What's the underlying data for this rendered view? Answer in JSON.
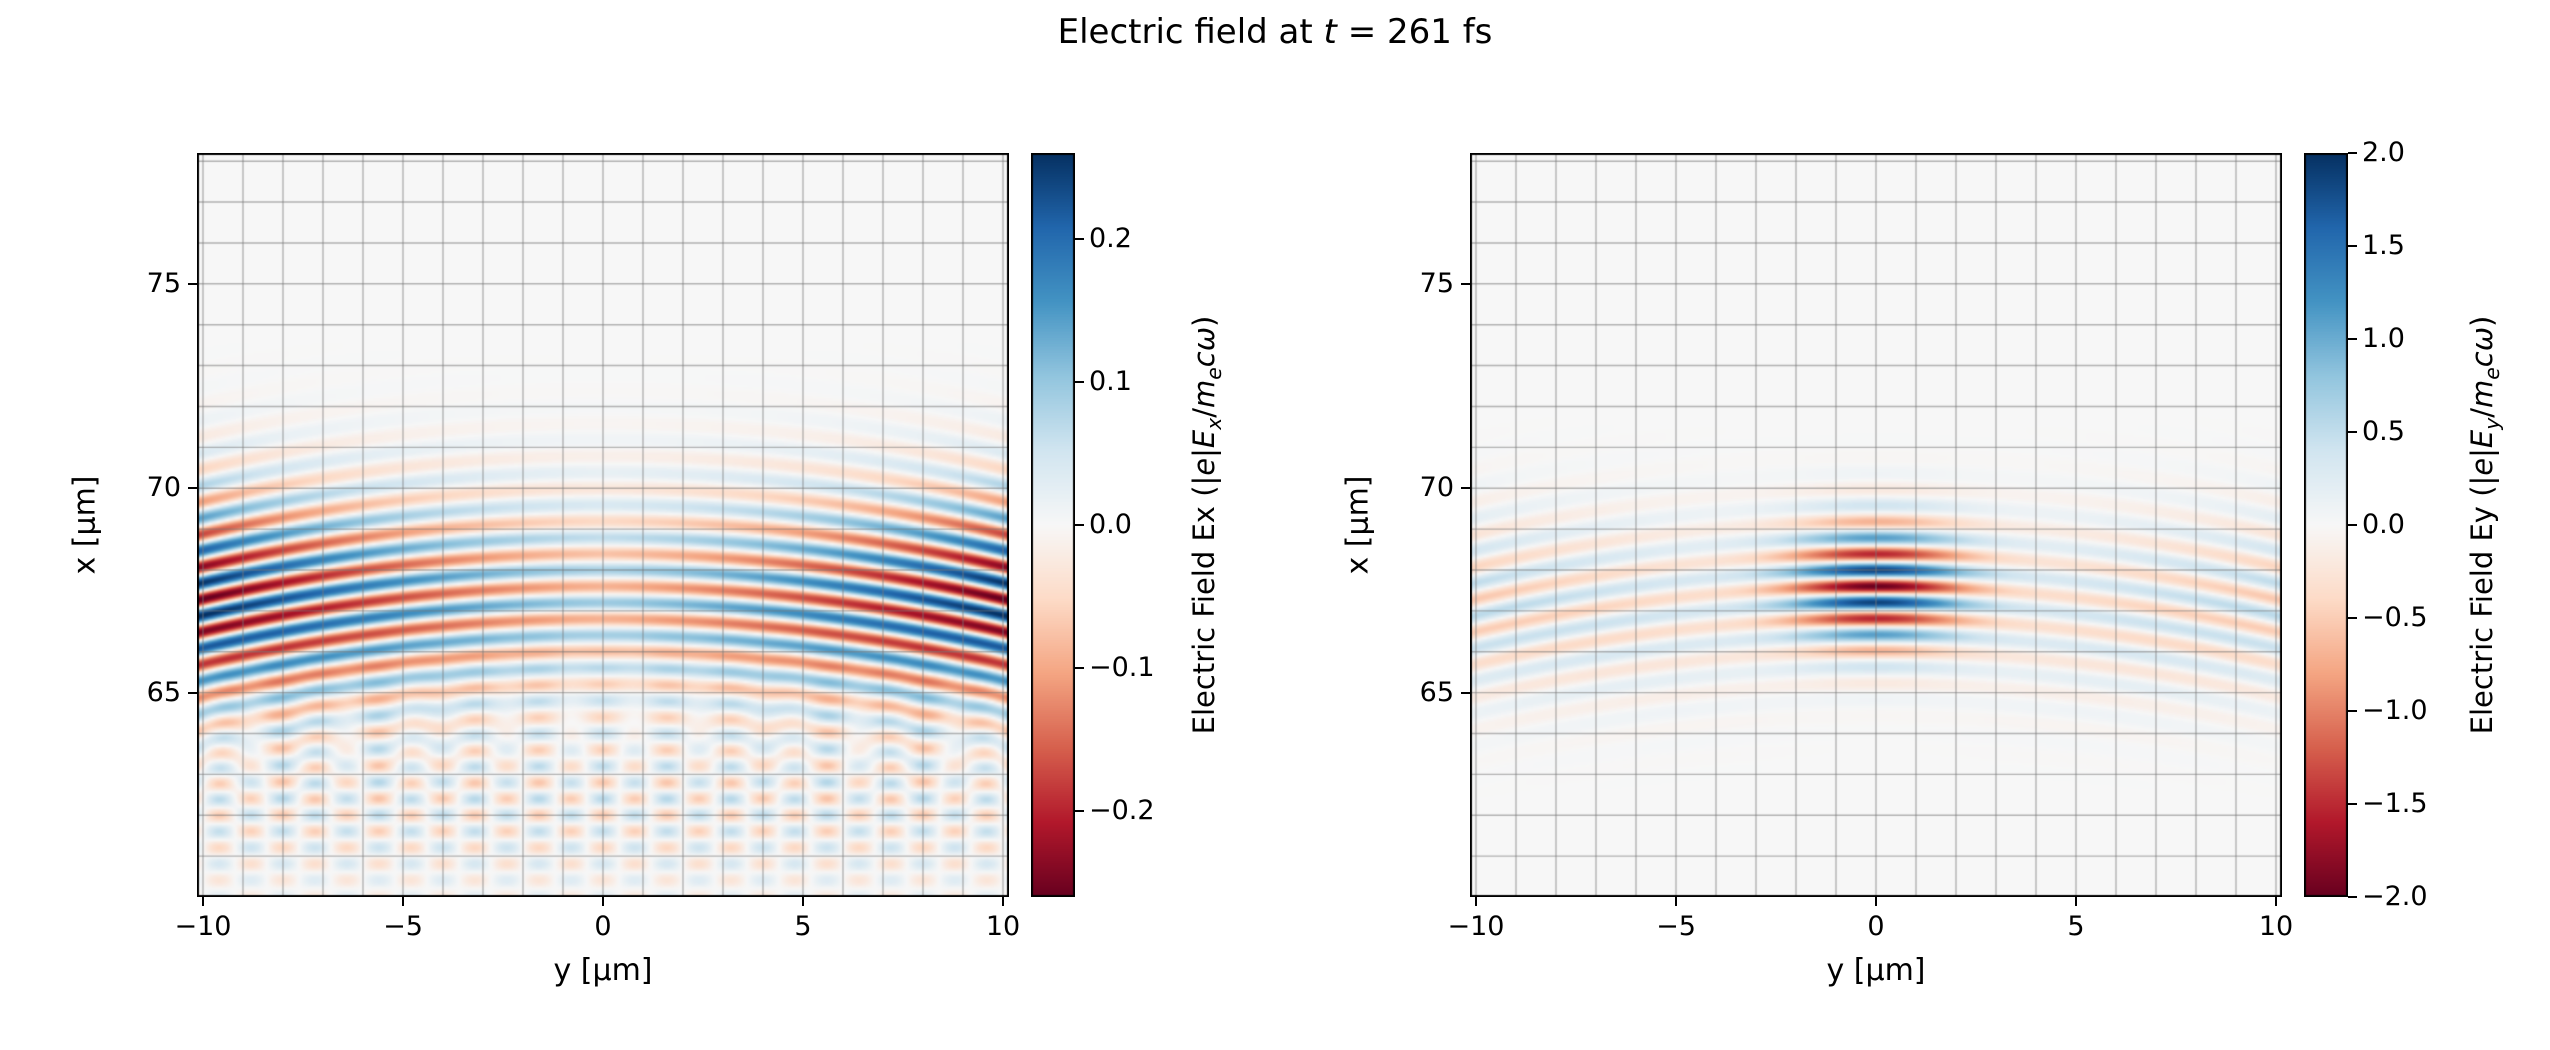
{
  "chart_data": {
    "type": "heatmap",
    "colormap": "RdBu",
    "time_fs": 261,
    "title_parts": [
      {
        "t": "Electric field at "
      },
      {
        "t": "t",
        "i": true
      },
      {
        "t": " = 261 fs"
      }
    ],
    "panels": [
      {
        "key": "ex",
        "name": "Electric Field Ex",
        "xlabel": "y [µm]",
        "ylabel": "x [µm]",
        "xlim": [
          -10.15,
          10.15
        ],
        "ylim": [
          60.0,
          78.2
        ],
        "xticks": [
          -10,
          -5,
          0,
          5,
          10
        ],
        "xtick_labels": [
          "−10",
          "−5",
          "0",
          "5",
          "10"
        ],
        "yticks": [
          65,
          70,
          75
        ],
        "ytick_labels": [
          "65",
          "70",
          "75"
        ],
        "grid_step": 1,
        "colorbar": {
          "clim": [
            -0.26,
            0.26
          ],
          "ticks": [
            0.2,
            0.1,
            0.0,
            -0.1,
            -0.2
          ],
          "tick_labels": [
            "0.2",
            "0.1",
            "0.0",
            "−0.1",
            "−0.2"
          ],
          "label_parts": [
            {
              "t": "Electric Field Ex (|"
            },
            {
              "t": "e",
              "i": true
            },
            {
              "t": "|"
            },
            {
              "t": "E",
              "i": true
            },
            {
              "t": "x",
              "i": true,
              "sub": true
            },
            {
              "t": "/"
            },
            {
              "t": "m",
              "i": true
            },
            {
              "t": "e",
              "i": true,
              "sub": true
            },
            {
              "t": "c",
              "i": true
            },
            {
              "t": "ω",
              "i": true
            },
            {
              "t": ")"
            }
          ]
        },
        "field_model": {
          "kind": "longitudinal",
          "amplitude": 0.27,
          "wavelength_um": 0.8,
          "x_center_um": 67.2,
          "x_sigma_um": 2.6,
          "edge_amp_min": 0.35,
          "wavefront_R_um": 45,
          "arc_amp": 0.035,
          "arc_x_center_um": 62.3,
          "arc_x_sigma_um": 2.2,
          "arc_slope": 0.5
        }
      },
      {
        "key": "ey",
        "name": "Electric Field Ey",
        "xlabel": "y [µm]",
        "ylabel": "x [µm]",
        "xlim": [
          -10.15,
          10.15
        ],
        "ylim": [
          60.0,
          78.2
        ],
        "xticks": [
          -10,
          -5,
          0,
          5,
          10
        ],
        "xtick_labels": [
          "−10",
          "−5",
          "0",
          "5",
          "10"
        ],
        "yticks": [
          65,
          70,
          75
        ],
        "ytick_labels": [
          "65",
          "70",
          "75"
        ],
        "grid_step": 1,
        "colorbar": {
          "clim": [
            -2.0,
            2.0
          ],
          "ticks": [
            2.0,
            1.5,
            1.0,
            0.5,
            0.0,
            -0.5,
            -1.0,
            -1.5,
            -2.0
          ],
          "tick_labels": [
            "2.0",
            "1.5",
            "1.0",
            "0.5",
            "0.0",
            "−0.5",
            "−1.0",
            "−1.5",
            "−2.0"
          ],
          "label_parts": [
            {
              "t": "Electric Field Ey (|"
            },
            {
              "t": "e",
              "i": true
            },
            {
              "t": "|"
            },
            {
              "t": "E",
              "i": true
            },
            {
              "t": "y",
              "i": true,
              "sub": true
            },
            {
              "t": "/"
            },
            {
              "t": "m",
              "i": true
            },
            {
              "t": "e",
              "i": true,
              "sub": true
            },
            {
              "t": "c",
              "i": true
            },
            {
              "t": "ω",
              "i": true
            },
            {
              "t": ")"
            }
          ]
        },
        "field_model": {
          "kind": "transverse",
          "amplitude": 2.0,
          "wavelength_um": 0.8,
          "x_center_um": 67.6,
          "x_sigma_um": 1.55,
          "y_sigma_um": 2.25,
          "wing_amp": 0.55,
          "wing_x_center_um": 67.1,
          "wing_x_sigma_um": 2.1,
          "wavefront_R_um": 45
        }
      }
    ]
  }
}
